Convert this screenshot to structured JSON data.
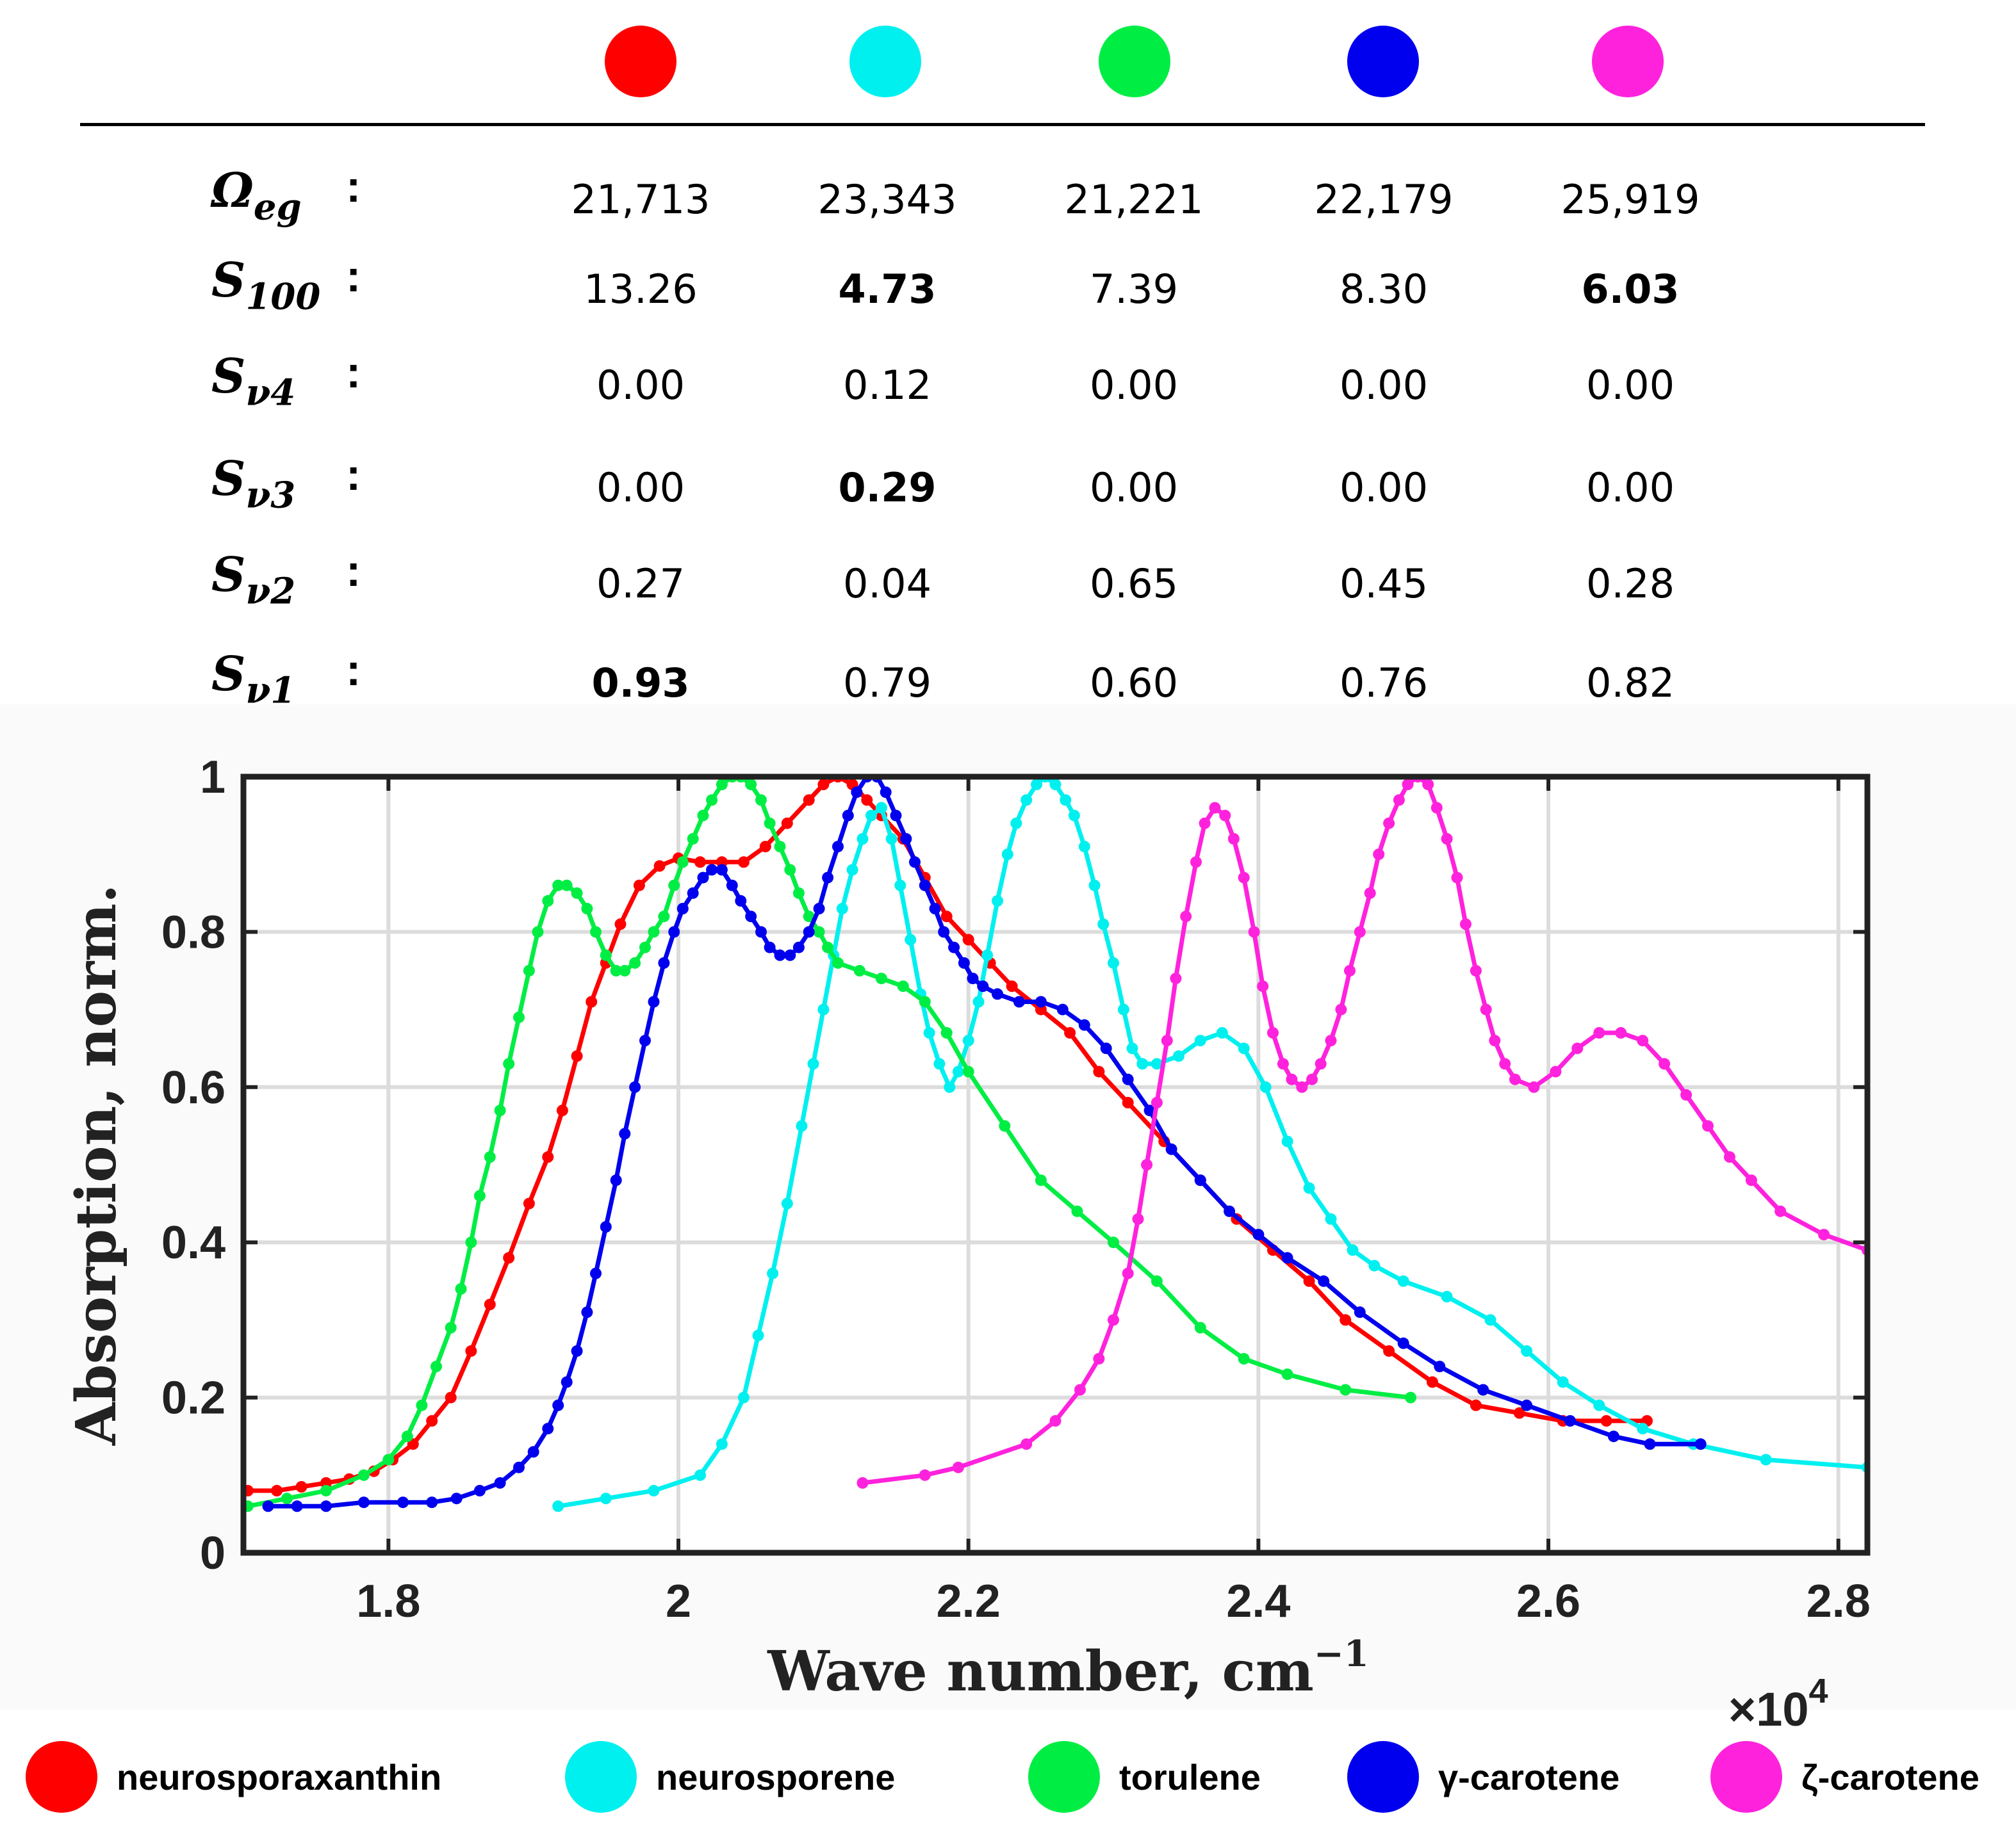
{
  "colors": {
    "neurosporaxanthin": "#ff0000",
    "neurosporene": "#00f0f0",
    "torulene": "#00ee44",
    "gamma_carotene": "#0000ee",
    "zeta_carotene": "#ff22dd"
  },
  "table": {
    "rows": [
      {
        "sym": "Ω",
        "sub": "eg",
        "values": [
          "21,713",
          "23,343",
          "21,221",
          "22,179",
          "25,919"
        ],
        "bold": [
          false,
          false,
          false,
          false,
          false
        ]
      },
      {
        "sym": "S",
        "sub": "100",
        "values": [
          "13.26",
          "4.73",
          "7.39",
          "8.30",
          "6.03"
        ],
        "bold": [
          false,
          true,
          false,
          false,
          true
        ]
      },
      {
        "sym": "S",
        "sub": "ν4",
        "values": [
          "0.00",
          "0.12",
          "0.00",
          "0.00",
          "0.00"
        ],
        "bold": [
          false,
          false,
          false,
          false,
          false
        ]
      },
      {
        "sym": "S",
        "sub": "ν3",
        "values": [
          "0.00",
          "0.29",
          "0.00",
          "0.00",
          "0.00"
        ],
        "bold": [
          false,
          true,
          false,
          false,
          false
        ]
      },
      {
        "sym": "S",
        "sub": "ν2",
        "values": [
          "0.27",
          "0.04",
          "0.65",
          "0.45",
          "0.28"
        ],
        "bold": [
          false,
          false,
          false,
          false,
          false
        ]
      },
      {
        "sym": "S",
        "sub": "ν1",
        "values": [
          "0.93",
          "0.79",
          "0.60",
          "0.76",
          "0.82"
        ],
        "bold": [
          true,
          false,
          false,
          false,
          false
        ]
      }
    ],
    "colon": ":"
  },
  "chart_data": {
    "type": "line",
    "title": "",
    "xlabel": "Wave number, cm",
    "xlabel_sup": "−1",
    "ylabel": "Absorption, norm.",
    "x_multiplier": "×10",
    "x_multiplier_sup": "4",
    "xlim": [
      1.7,
      2.82
    ],
    "ylim": [
      0,
      1
    ],
    "xticks": [
      1.8,
      2.0,
      2.2,
      2.4,
      2.6,
      2.8
    ],
    "xtick_labels": [
      "1.8",
      "2",
      "2.2",
      "2.4",
      "2.6",
      "2.8"
    ],
    "yticks": [
      0,
      0.2,
      0.4,
      0.6,
      0.8,
      1.0
    ],
    "ytick_labels": [
      "0",
      "0.2",
      "0.4",
      "0.6",
      "0.8",
      "1"
    ],
    "grid": true,
    "series": [
      {
        "name": "neurosporaxanthin",
        "color": "#ff0000",
        "x": [
          1.703,
          1.723,
          1.74,
          1.757,
          1.773,
          1.79,
          1.803,
          1.817,
          1.83,
          1.843,
          1.857,
          1.87,
          1.883,
          1.897,
          1.91,
          1.92,
          1.93,
          1.94,
          1.95,
          1.96,
          1.973,
          1.987,
          2.0,
          2.015,
          2.03,
          2.045,
          2.06,
          2.075,
          2.09,
          2.1,
          2.11,
          2.12,
          2.13,
          2.14,
          2.155,
          2.17,
          2.185,
          2.2,
          2.215,
          2.23,
          2.25,
          2.27,
          2.29,
          2.31,
          2.335,
          2.36,
          2.385,
          2.41,
          2.435,
          2.46,
          2.49,
          2.52,
          2.55,
          2.58,
          2.61,
          2.64,
          2.668
        ],
        "y": [
          0.08,
          0.08,
          0.085,
          0.09,
          0.095,
          0.105,
          0.12,
          0.14,
          0.17,
          0.2,
          0.26,
          0.32,
          0.38,
          0.45,
          0.51,
          0.57,
          0.64,
          0.71,
          0.76,
          0.81,
          0.86,
          0.885,
          0.895,
          0.89,
          0.89,
          0.89,
          0.91,
          0.94,
          0.97,
          0.99,
          1.0,
          0.99,
          0.97,
          0.95,
          0.92,
          0.87,
          0.82,
          0.79,
          0.76,
          0.73,
          0.7,
          0.67,
          0.62,
          0.58,
          0.53,
          0.48,
          0.43,
          0.39,
          0.35,
          0.3,
          0.26,
          0.22,
          0.19,
          0.18,
          0.17,
          0.17,
          0.17
        ]
      },
      {
        "name": "neurosporene",
        "color": "#00f0f0",
        "x": [
          1.917,
          1.95,
          1.983,
          2.015,
          2.03,
          2.045,
          2.055,
          2.065,
          2.075,
          2.085,
          2.093,
          2.1,
          2.107,
          2.113,
          2.12,
          2.127,
          2.133,
          2.14,
          2.147,
          2.153,
          2.16,
          2.167,
          2.173,
          2.18,
          2.187,
          2.193,
          2.2,
          2.207,
          2.213,
          2.22,
          2.227,
          2.233,
          2.24,
          2.247,
          2.253,
          2.26,
          2.267,
          2.273,
          2.28,
          2.287,
          2.293,
          2.3,
          2.307,
          2.313,
          2.32,
          2.33,
          2.345,
          2.36,
          2.375,
          2.39,
          2.405,
          2.42,
          2.435,
          2.45,
          2.465,
          2.48,
          2.5,
          2.53,
          2.56,
          2.585,
          2.61,
          2.635,
          2.665,
          2.7,
          2.75,
          2.82
        ],
        "y": [
          0.06,
          0.07,
          0.08,
          0.1,
          0.14,
          0.2,
          0.28,
          0.36,
          0.45,
          0.55,
          0.63,
          0.7,
          0.77,
          0.83,
          0.88,
          0.92,
          0.95,
          0.96,
          0.92,
          0.86,
          0.79,
          0.72,
          0.67,
          0.63,
          0.6,
          0.62,
          0.66,
          0.71,
          0.77,
          0.84,
          0.9,
          0.94,
          0.97,
          0.99,
          1.0,
          0.99,
          0.97,
          0.95,
          0.91,
          0.86,
          0.81,
          0.76,
          0.7,
          0.65,
          0.63,
          0.63,
          0.64,
          0.66,
          0.67,
          0.65,
          0.6,
          0.53,
          0.47,
          0.43,
          0.39,
          0.37,
          0.35,
          0.33,
          0.3,
          0.26,
          0.22,
          0.19,
          0.16,
          0.14,
          0.12,
          0.11
        ]
      },
      {
        "name": "torulene",
        "color": "#00ee44",
        "x": [
          1.703,
          1.73,
          1.757,
          1.783,
          1.8,
          1.813,
          1.823,
          1.833,
          1.843,
          1.85,
          1.857,
          1.863,
          1.87,
          1.877,
          1.883,
          1.89,
          1.897,
          1.903,
          1.91,
          1.917,
          1.923,
          1.93,
          1.937,
          1.943,
          1.95,
          1.957,
          1.963,
          1.97,
          1.977,
          1.983,
          1.99,
          1.997,
          2.003,
          2.01,
          2.017,
          2.023,
          2.03,
          2.037,
          2.043,
          2.05,
          2.057,
          2.063,
          2.07,
          2.077,
          2.083,
          2.09,
          2.097,
          2.103,
          2.11,
          2.125,
          2.14,
          2.155,
          2.17,
          2.185,
          2.2,
          2.225,
          2.25,
          2.275,
          2.3,
          2.33,
          2.36,
          2.39,
          2.42,
          2.46,
          2.505
        ],
        "y": [
          0.06,
          0.07,
          0.08,
          0.1,
          0.12,
          0.15,
          0.19,
          0.24,
          0.29,
          0.34,
          0.4,
          0.46,
          0.51,
          0.57,
          0.63,
          0.69,
          0.75,
          0.8,
          0.84,
          0.86,
          0.86,
          0.85,
          0.83,
          0.8,
          0.77,
          0.75,
          0.75,
          0.76,
          0.78,
          0.8,
          0.82,
          0.86,
          0.89,
          0.92,
          0.95,
          0.97,
          0.99,
          1.0,
          1.0,
          0.99,
          0.97,
          0.94,
          0.91,
          0.88,
          0.85,
          0.82,
          0.8,
          0.78,
          0.76,
          0.75,
          0.74,
          0.73,
          0.71,
          0.67,
          0.62,
          0.55,
          0.48,
          0.44,
          0.4,
          0.35,
          0.29,
          0.25,
          0.23,
          0.21,
          0.2
        ]
      },
      {
        "name": "gamma_carotene",
        "color": "#0000ee",
        "x": [
          1.717,
          1.737,
          1.757,
          1.783,
          1.81,
          1.83,
          1.847,
          1.863,
          1.877,
          1.89,
          1.9,
          1.91,
          1.917,
          1.923,
          1.93,
          1.937,
          1.943,
          1.95,
          1.957,
          1.963,
          1.97,
          1.977,
          1.983,
          1.99,
          1.997,
          2.003,
          2.01,
          2.017,
          2.023,
          2.03,
          2.037,
          2.043,
          2.05,
          2.057,
          2.063,
          2.07,
          2.077,
          2.083,
          2.09,
          2.097,
          2.103,
          2.11,
          2.117,
          2.123,
          2.13,
          2.137,
          2.143,
          2.15,
          2.157,
          2.163,
          2.17,
          2.177,
          2.183,
          2.19,
          2.197,
          2.203,
          2.21,
          2.22,
          2.235,
          2.25,
          2.265,
          2.28,
          2.295,
          2.31,
          2.325,
          2.34,
          2.36,
          2.38,
          2.4,
          2.42,
          2.445,
          2.47,
          2.5,
          2.525,
          2.555,
          2.585,
          2.615,
          2.645,
          2.67,
          2.705
        ],
        "y": [
          0.06,
          0.06,
          0.06,
          0.065,
          0.065,
          0.065,
          0.07,
          0.08,
          0.09,
          0.11,
          0.13,
          0.16,
          0.19,
          0.22,
          0.26,
          0.31,
          0.36,
          0.42,
          0.48,
          0.54,
          0.6,
          0.66,
          0.71,
          0.76,
          0.8,
          0.83,
          0.85,
          0.87,
          0.88,
          0.88,
          0.86,
          0.84,
          0.82,
          0.8,
          0.78,
          0.77,
          0.77,
          0.78,
          0.8,
          0.83,
          0.87,
          0.91,
          0.95,
          0.98,
          1.0,
          1.0,
          0.98,
          0.95,
          0.92,
          0.89,
          0.86,
          0.83,
          0.8,
          0.78,
          0.76,
          0.74,
          0.73,
          0.72,
          0.71,
          0.71,
          0.7,
          0.68,
          0.65,
          0.61,
          0.57,
          0.52,
          0.48,
          0.44,
          0.41,
          0.38,
          0.35,
          0.31,
          0.27,
          0.24,
          0.21,
          0.19,
          0.17,
          0.15,
          0.14,
          0.14
        ]
      },
      {
        "name": "zeta_carotene",
        "color": "#ff22dd",
        "x": [
          2.127,
          2.17,
          2.193,
          2.24,
          2.26,
          2.277,
          2.29,
          2.3,
          2.31,
          2.317,
          2.323,
          2.33,
          2.337,
          2.343,
          2.35,
          2.357,
          2.363,
          2.37,
          2.377,
          2.383,
          2.39,
          2.397,
          2.403,
          2.41,
          2.417,
          2.423,
          2.43,
          2.437,
          2.443,
          2.45,
          2.457,
          2.463,
          2.47,
          2.477,
          2.483,
          2.49,
          2.497,
          2.503,
          2.51,
          2.517,
          2.523,
          2.53,
          2.537,
          2.543,
          2.55,
          2.557,
          2.563,
          2.57,
          2.577,
          2.59,
          2.605,
          2.62,
          2.635,
          2.65,
          2.665,
          2.68,
          2.695,
          2.71,
          2.725,
          2.74,
          2.76,
          2.79,
          2.82
        ],
        "y": [
          0.09,
          0.1,
          0.11,
          0.14,
          0.17,
          0.21,
          0.25,
          0.3,
          0.36,
          0.43,
          0.5,
          0.58,
          0.66,
          0.74,
          0.82,
          0.89,
          0.94,
          0.96,
          0.95,
          0.92,
          0.87,
          0.8,
          0.73,
          0.67,
          0.63,
          0.61,
          0.6,
          0.61,
          0.63,
          0.66,
          0.7,
          0.75,
          0.8,
          0.85,
          0.9,
          0.94,
          0.97,
          0.99,
          1.0,
          0.99,
          0.96,
          0.92,
          0.87,
          0.81,
          0.75,
          0.7,
          0.66,
          0.63,
          0.61,
          0.6,
          0.62,
          0.65,
          0.67,
          0.67,
          0.66,
          0.63,
          0.59,
          0.55,
          0.51,
          0.48,
          0.44,
          0.41,
          0.39
        ]
      }
    ]
  },
  "legend": [
    {
      "key": "neurosporaxanthin",
      "label": "neurosporaxanthin",
      "color": "#ff0000"
    },
    {
      "key": "neurosporene",
      "label": "neurosporene",
      "color": "#00f0f0"
    },
    {
      "key": "torulene",
      "label": "torulene",
      "color": "#00ee44"
    },
    {
      "key": "gamma_carotene",
      "label": "γ-carotene",
      "color": "#0000ee"
    },
    {
      "key": "zeta_carotene",
      "label": "ζ-carotene",
      "color": "#ff22dd"
    }
  ]
}
